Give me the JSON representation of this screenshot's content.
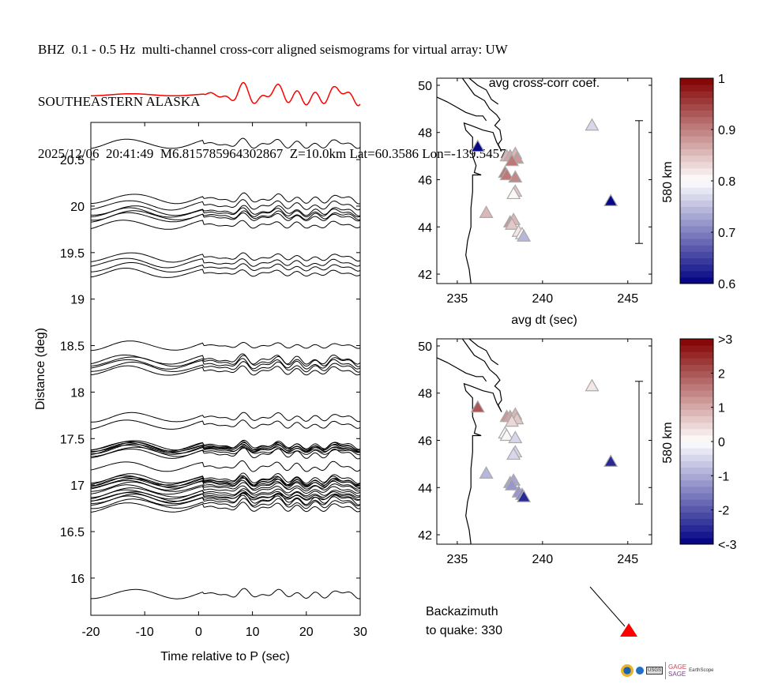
{
  "title": {
    "line1": "BHZ  0.1 - 0.5 Hz  multi-channel cross-corr aligned seismograms for virtual array: UW",
    "line2": "SOUTHEASTERN ALASKA",
    "line3": "2025/12/06  20:41:49  M6.815785964302867  Z=10.0km Lat=60.3586 Lon=-139.5457"
  },
  "chart_data": [
    {
      "type": "line",
      "name": "record-section",
      "title": "",
      "xlabel": "Time relative to P (sec)",
      "ylabel": "Distance (deg)",
      "xlim": [
        -20,
        30
      ],
      "ylim": [
        15.6,
        20.9
      ],
      "xticks": [
        -20,
        -10,
        0,
        10,
        20,
        30
      ],
      "yticks": [
        16,
        16.5,
        17,
        17.5,
        18,
        18.5,
        19,
        19.5,
        20,
        20.5
      ],
      "ytick_labels": [
        "16",
        "16.5",
        "17",
        "17.5",
        "18",
        "18.5",
        "19",
        "19.5",
        "20",
        "20.5"
      ],
      "trace_color": "#000000",
      "stack_color": "#ff0000",
      "trace_distances": [
        20.67,
        20.08,
        20.01,
        19.95,
        19.93,
        19.9,
        19.88,
        19.8,
        19.45,
        19.39,
        19.34,
        19.28,
        18.5,
        18.35,
        18.33,
        18.3,
        18.27,
        18.23,
        17.73,
        17.65,
        17.43,
        17.42,
        17.41,
        17.4,
        17.39,
        17.38,
        17.36,
        17.34,
        17.2,
        17.07,
        17.05,
        17.04,
        17.03,
        17.02,
        17.0,
        16.98,
        16.95,
        16.92,
        16.9,
        16.88,
        16.87,
        16.85,
        16.83,
        16.8,
        16.76,
        15.83
      ]
    },
    {
      "type": "scatter",
      "name": "map-cross-corr",
      "title": "avg cross-corr coef.",
      "xlabel": "avg dt (sec)",
      "ylabel": "",
      "xlim": [
        233.8,
        246.4
      ],
      "ylim": [
        41.6,
        50.3
      ],
      "xticks": [
        235,
        240,
        245
      ],
      "yticks": [
        42,
        44,
        46,
        48,
        50
      ],
      "scale_bar_label": "580 km",
      "colorbar": {
        "min": 0.6,
        "max": 1.0,
        "ticks": [
          "0.6",
          "0.7",
          "0.8",
          "0.9",
          "1"
        ],
        "colormap": "blue-white-red"
      },
      "points": [
        {
          "x": 236.2,
          "y": 47.4,
          "value": 0.6
        },
        {
          "x": 242.9,
          "y": 48.3,
          "value": 0.77
        },
        {
          "x": 244.0,
          "y": 45.1,
          "value": 0.6
        },
        {
          "x": 237.9,
          "y": 47.0,
          "value": 0.85
        },
        {
          "x": 238.1,
          "y": 47.0,
          "value": 0.87
        },
        {
          "x": 238.4,
          "y": 47.1,
          "value": 0.86
        },
        {
          "x": 238.5,
          "y": 46.9,
          "value": 0.88
        },
        {
          "x": 238.2,
          "y": 46.8,
          "value": 0.9
        },
        {
          "x": 237.8,
          "y": 46.3,
          "value": 0.91
        },
        {
          "x": 237.9,
          "y": 46.2,
          "value": 0.9
        },
        {
          "x": 238.4,
          "y": 46.1,
          "value": 0.89
        },
        {
          "x": 238.4,
          "y": 45.5,
          "value": 0.84
        },
        {
          "x": 238.3,
          "y": 45.4,
          "value": 0.81
        },
        {
          "x": 236.7,
          "y": 44.6,
          "value": 0.85
        },
        {
          "x": 238.1,
          "y": 44.2,
          "value": 0.88
        },
        {
          "x": 238.3,
          "y": 44.3,
          "value": 0.86
        },
        {
          "x": 238.2,
          "y": 44.1,
          "value": 0.84
        },
        {
          "x": 238.6,
          "y": 43.8,
          "value": 0.82
        },
        {
          "x": 238.8,
          "y": 43.7,
          "value": 0.81
        },
        {
          "x": 238.9,
          "y": 43.6,
          "value": 0.74
        }
      ]
    },
    {
      "type": "scatter",
      "name": "map-dt",
      "title": "",
      "xlabel": "",
      "ylabel": "",
      "xlim": [
        233.8,
        246.4
      ],
      "ylim": [
        41.6,
        50.3
      ],
      "xticks": [
        235,
        240,
        245
      ],
      "yticks": [
        42,
        44,
        46,
        48,
        50
      ],
      "scale_bar_label": "580 km",
      "colorbar": {
        "min": -3,
        "max": 3,
        "ticks": [
          "<-3",
          "-2",
          "-1",
          "0",
          "1",
          "2",
          ">3"
        ],
        "colormap": "blue-white-red"
      },
      "points": [
        {
          "x": 236.2,
          "y": 47.4,
          "value": 1.9
        },
        {
          "x": 242.9,
          "y": 48.3,
          "value": 0.3
        },
        {
          "x": 244.0,
          "y": 45.1,
          "value": -2.6
        },
        {
          "x": 237.9,
          "y": 47.0,
          "value": 1.3
        },
        {
          "x": 238.1,
          "y": 47.0,
          "value": 1.1
        },
        {
          "x": 238.4,
          "y": 47.1,
          "value": 0.9
        },
        {
          "x": 238.5,
          "y": 46.9,
          "value": 0.6
        },
        {
          "x": 238.2,
          "y": 46.8,
          "value": 0.4
        },
        {
          "x": 237.8,
          "y": 46.3,
          "value": 0.0
        },
        {
          "x": 237.9,
          "y": 46.2,
          "value": 0.0
        },
        {
          "x": 238.4,
          "y": 46.1,
          "value": -0.5
        },
        {
          "x": 238.4,
          "y": 45.5,
          "value": -0.4
        },
        {
          "x": 238.3,
          "y": 45.4,
          "value": -0.5
        },
        {
          "x": 236.7,
          "y": 44.6,
          "value": -0.8
        },
        {
          "x": 238.1,
          "y": 44.2,
          "value": -1.1
        },
        {
          "x": 238.3,
          "y": 44.3,
          "value": -1.0
        },
        {
          "x": 238.2,
          "y": 44.1,
          "value": -1.2
        },
        {
          "x": 238.6,
          "y": 43.8,
          "value": -1.3
        },
        {
          "x": 238.8,
          "y": 43.7,
          "value": -1.5
        },
        {
          "x": 238.9,
          "y": 43.6,
          "value": -2.5
        }
      ]
    }
  ],
  "backazimuth": {
    "label_line1": "Backazimuth",
    "label_line2": "to quake:  330",
    "value_deg": 330,
    "marker_color": "#ff0000"
  },
  "logos": {
    "gage": "GAGE",
    "sage": "SAGE",
    "earthscope": "EarthScope",
    "usgs": "USGS"
  }
}
